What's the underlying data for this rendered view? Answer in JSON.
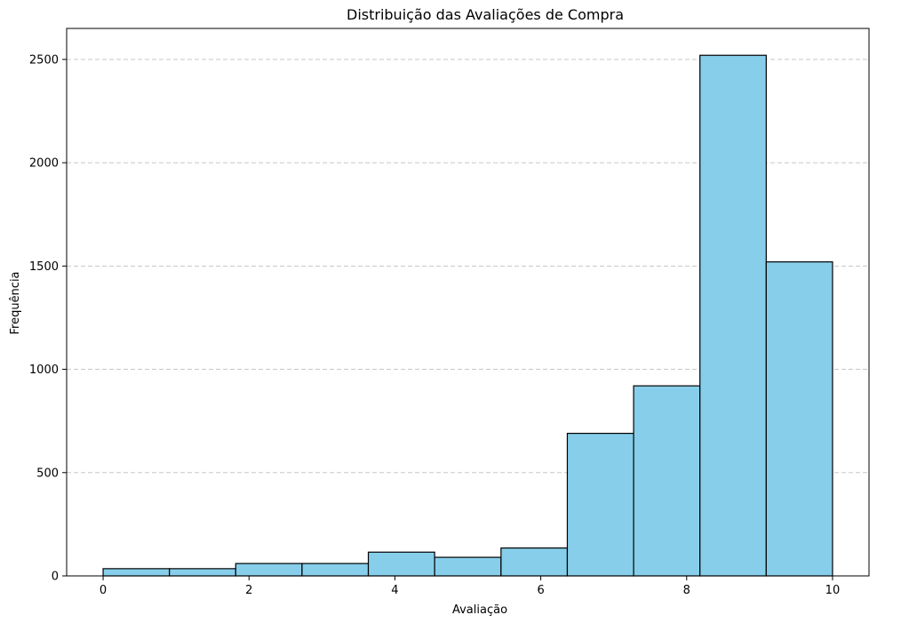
{
  "chart_data": {
    "type": "bar",
    "title": "Distribuição das Avaliações de Compra",
    "xlabel": "Avaliação",
    "ylabel": "Frequência",
    "bin_edges": [
      0,
      0.909,
      1.818,
      2.727,
      3.636,
      4.545,
      5.455,
      6.364,
      7.273,
      8.182,
      9.091,
      10
    ],
    "values": [
      35,
      35,
      60,
      60,
      115,
      90,
      135,
      690,
      920,
      2520,
      1520
    ],
    "xlim": [
      -0.5,
      10.5
    ],
    "ylim": [
      0,
      2650
    ],
    "xticks": [
      0,
      2,
      4,
      6,
      8,
      10
    ],
    "xtick_labels": [
      "0",
      "2",
      "4",
      "6",
      "8",
      "10"
    ],
    "yticks": [
      0,
      500,
      1000,
      1500,
      2000,
      2500
    ],
    "ytick_labels": [
      "0",
      "500",
      "1000",
      "1500",
      "2000",
      "2500"
    ],
    "grid": "y-dashed",
    "colors": {
      "bar_fill": "#87ceeb",
      "bar_edge": "#000000",
      "grid": "#c8c8c8"
    }
  }
}
